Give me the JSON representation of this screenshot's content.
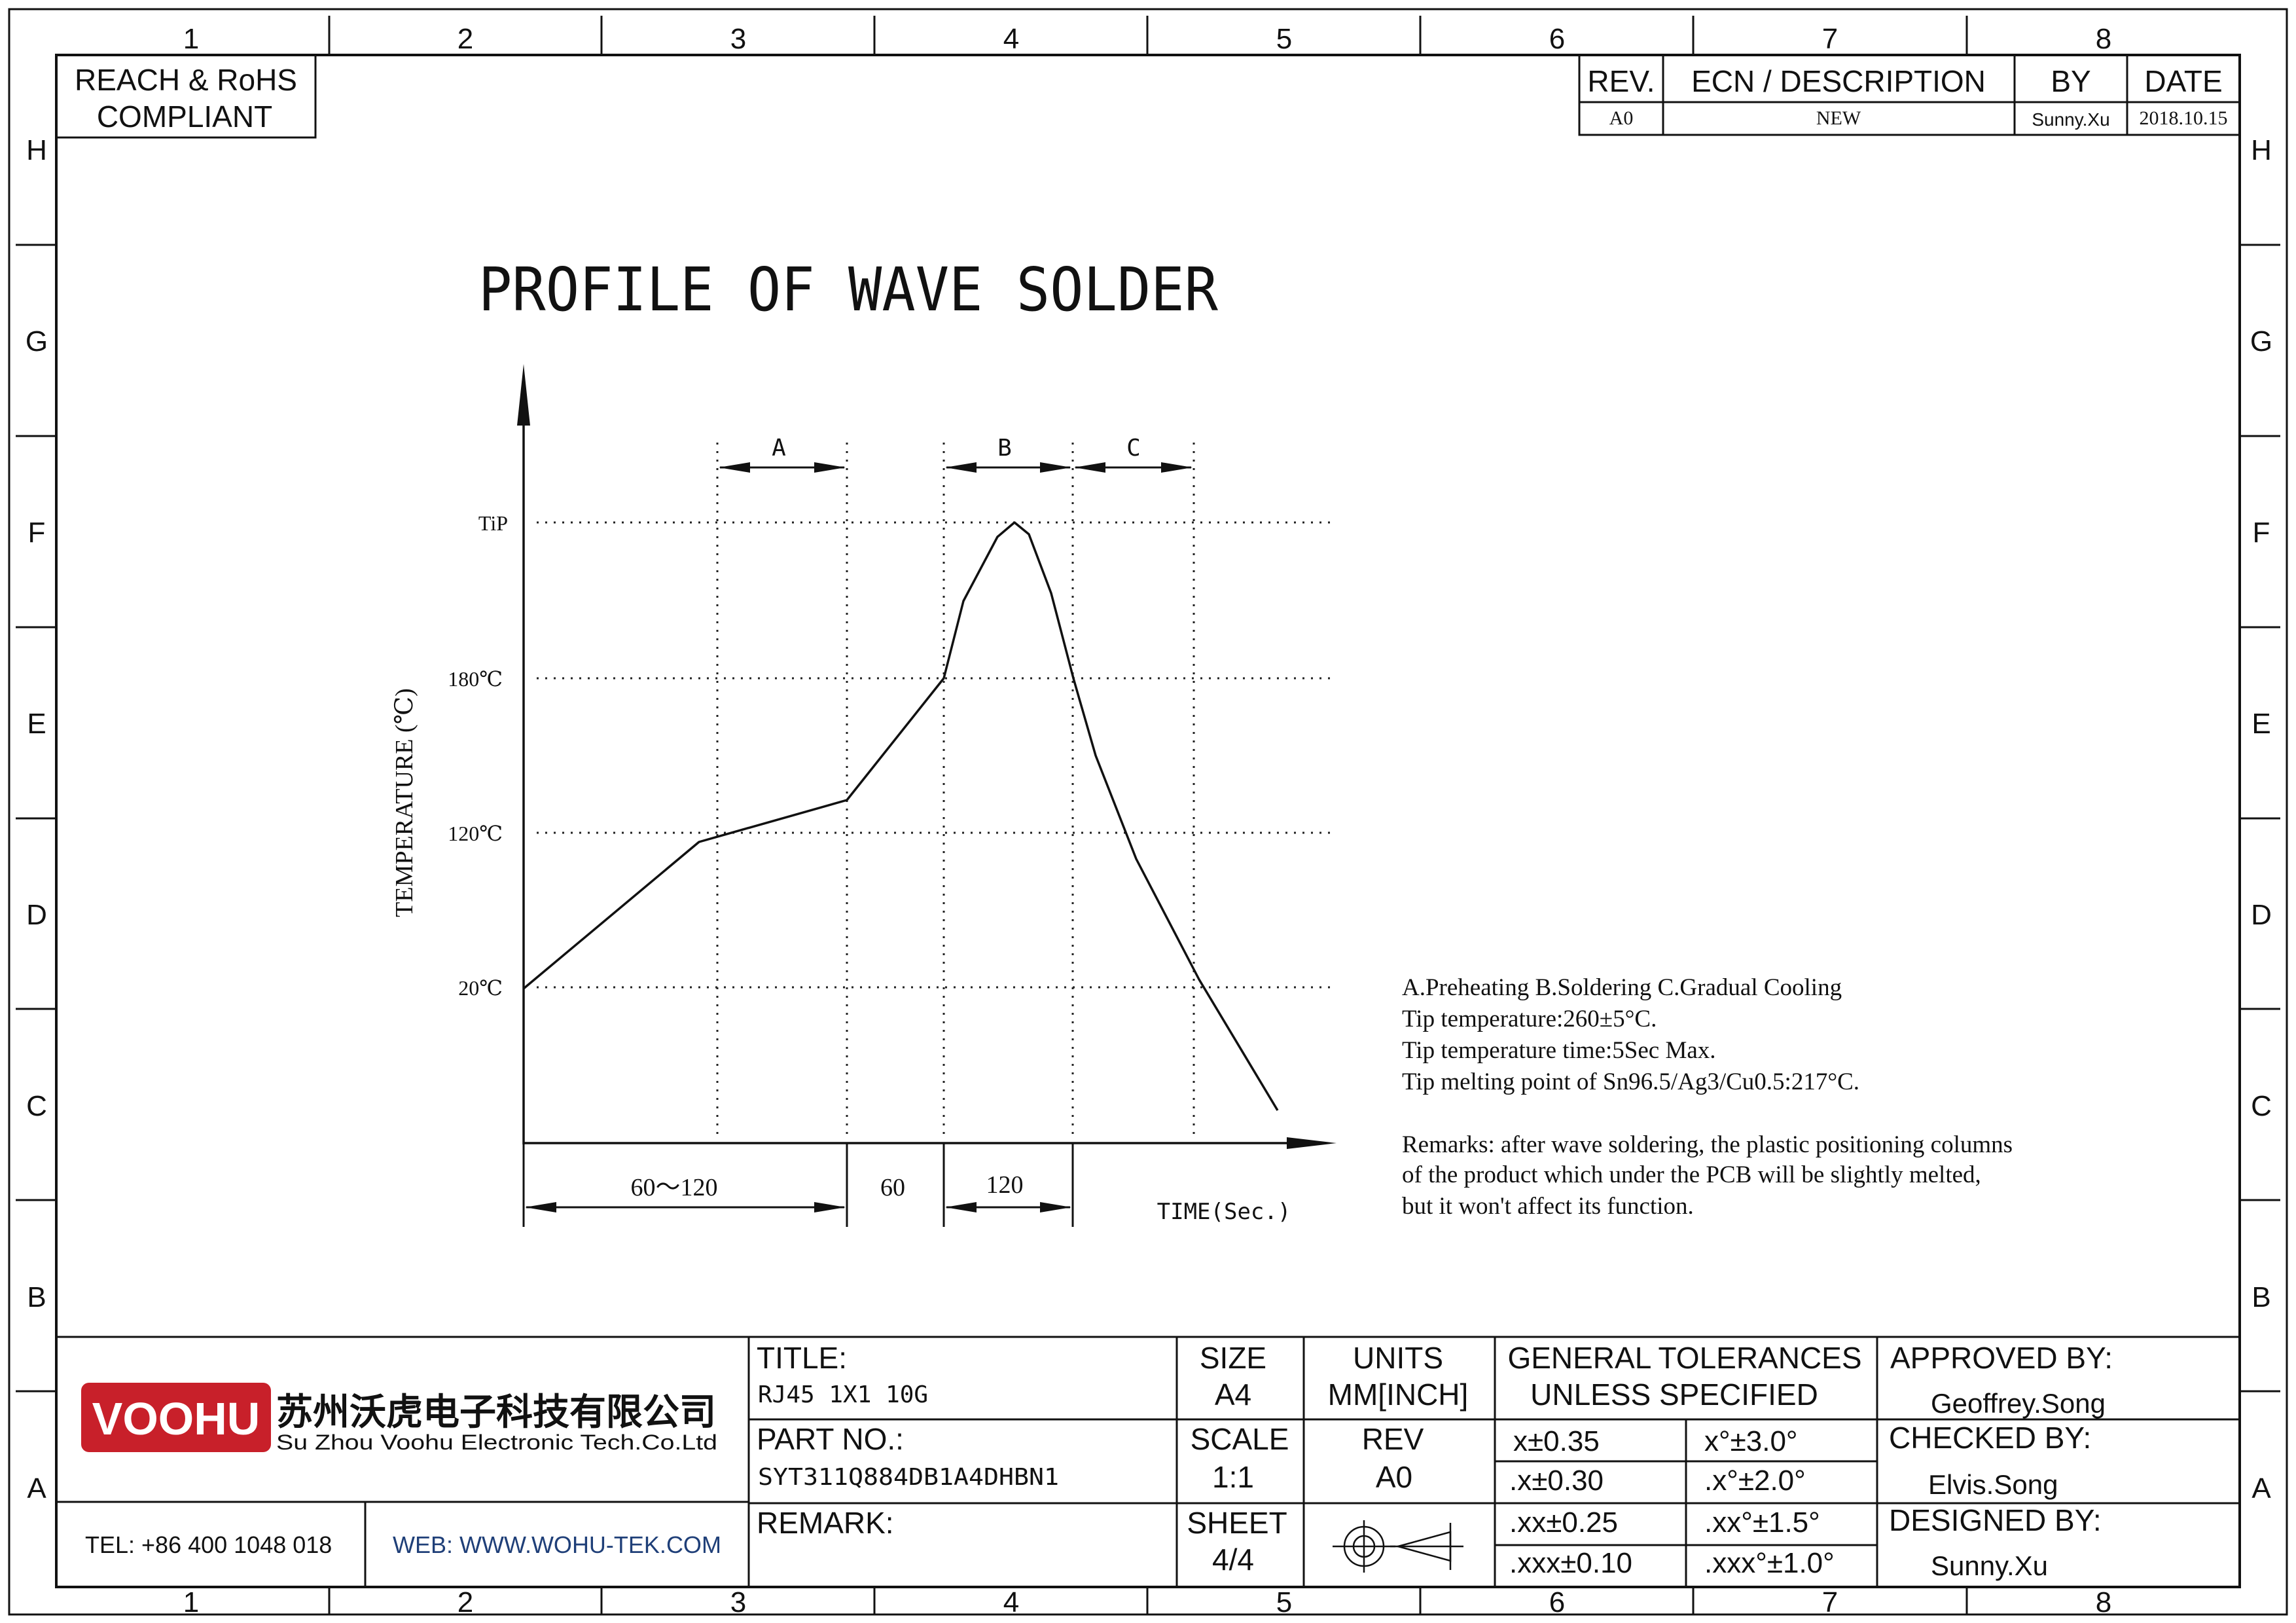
{
  "zones": {
    "columns": [
      "1",
      "2",
      "3",
      "4",
      "5",
      "6",
      "7",
      "8"
    ],
    "rows": [
      "H",
      "G",
      "F",
      "E",
      "D",
      "C",
      "B",
      "A"
    ]
  },
  "compliance": [
    "REACH & RoHS",
    "COMPLIANT"
  ],
  "revision_table": {
    "headers": {
      "rev": "REV.",
      "ecn": "ECN / DESCRIPTION",
      "by": "BY",
      "date": "DATE"
    },
    "row": {
      "rev": "A0",
      "ecn": "NEW",
      "by": "Sunny.Xu",
      "date": "2018.10.15"
    }
  },
  "chart_data": {
    "type": "line",
    "title": "PROFILE OF WAVE SOLDER",
    "xlabel": "TIME(Sec.)",
    "ylabel": "TEMPERATURE (℃)",
    "y_ticks": [
      "20℃",
      "120℃",
      "180℃",
      "TiP"
    ],
    "grid": "dotted",
    "phases": [
      {
        "label": "A",
        "duration": "60～120"
      },
      {
        "label": "",
        "duration": "60"
      },
      {
        "label": "B",
        "duration": "120"
      },
      {
        "label": "C",
        "duration": ""
      }
    ]
  },
  "notes": [
    "A.Preheating  B.Soldering  C.Gradual Cooling",
    "Tip temperature:260±5°C.",
    "Tip temperature time:5Sec Max.",
    "Tip melting point of Sn96.5/Ag3/Cu0.5:217°C."
  ],
  "remarks": [
    "Remarks: after wave soldering, the plastic positioning columns",
    "of the product  which under the PCB will be slightly melted,",
    "but it won't affect its function."
  ],
  "title_block": {
    "logo_text": "VOOHU",
    "company_cn": "苏州沃虎电子科技有限公司",
    "company_en": "Su Zhou Voohu Electronic Tech.Co.Ltd",
    "tel": "TEL: +86 400 1048 018",
    "web": "WEB: WWW.WOHU-TEK.COM",
    "title_label": "TITLE:",
    "title_value": "RJ45 1X1 10G",
    "part_label": "PART NO.:",
    "part_value": "SYT311Q884DB1A4DHBN1",
    "remark_label": "REMARK:",
    "size_label": "SIZE",
    "size_value": "A4",
    "units_label": "UNITS",
    "units_value": "MM[INCH]",
    "scale_label": "SCALE",
    "scale_value": "1:1",
    "rev_label": "REV",
    "rev_value": "A0",
    "sheet_label": "SHEET",
    "sheet_value": "4/4",
    "tol_heading": [
      "GENERAL TOLERANCES",
      "UNLESS SPECIFIED"
    ],
    "tolerances": [
      [
        "x±0.35",
        "x°±3.0°"
      ],
      [
        ".x±0.30",
        ".x°±2.0°"
      ],
      [
        ".xx±0.25",
        ".xx°±1.5°"
      ],
      [
        ".xxx±0.10",
        ".xxx°±1.0°"
      ]
    ],
    "approved_label": "APPROVED BY:",
    "approved_value": "Geoffrey.Song",
    "checked_label": "CHECKED BY:",
    "checked_value": "Elvis.Song",
    "designed_label": "DESIGNED BY:",
    "designed_value": "Sunny.Xu"
  },
  "colors": {
    "ink": "#111111",
    "logo_red": "#c8202a",
    "logo_text": "#ffffff",
    "link_blue": "#1f3f78"
  }
}
